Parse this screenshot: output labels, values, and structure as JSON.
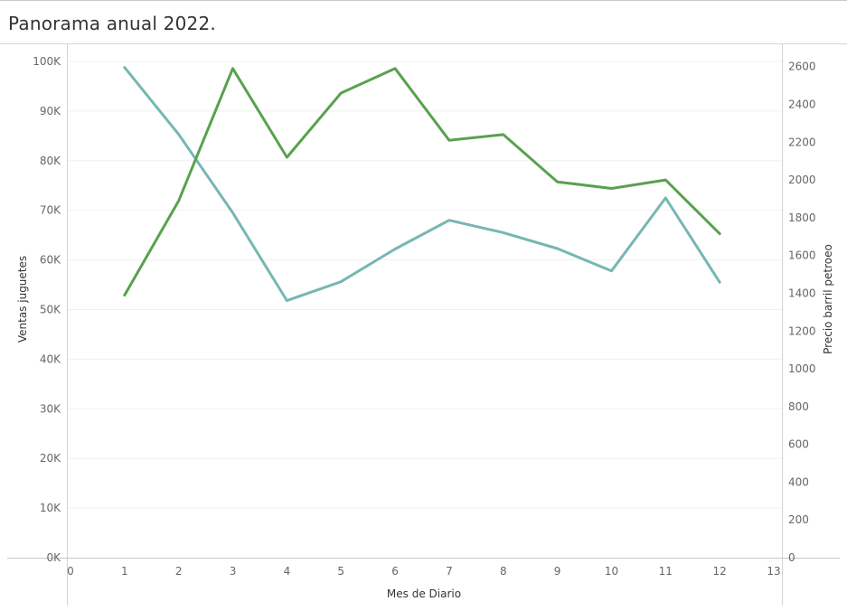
{
  "title": "Panorama anual 2022.",
  "chart_data": {
    "type": "line",
    "xlabel": "Mes de Diario",
    "x_ticks": [
      "0",
      "1",
      "2",
      "3",
      "4",
      "5",
      "6",
      "7",
      "8",
      "9",
      "10",
      "11",
      "12",
      "13"
    ],
    "xlim": [
      0,
      13
    ],
    "x": [
      1,
      2,
      3,
      4,
      5,
      6,
      7,
      8,
      9,
      10,
      11,
      12
    ],
    "left_axis": {
      "label": "Ventas juguetes",
      "ylim": [
        0,
        102000
      ],
      "ticks": [
        "0K",
        "10K",
        "20K",
        "30K",
        "40K",
        "50K",
        "60K",
        "70K",
        "80K",
        "90K",
        "100K"
      ]
    },
    "right_axis": {
      "label": "Precio barril petroeo",
      "ylim": [
        0,
        2680
      ],
      "ticks": [
        "0",
        "200",
        "400",
        "600",
        "800",
        "1000",
        "1200",
        "1400",
        "1600",
        "1800",
        "2000",
        "2200",
        "2400",
        "2600"
      ]
    },
    "series": [
      {
        "axis": "left",
        "color": "#76b7b2",
        "values": [
          98800,
          85300,
          69500,
          51800,
          55600,
          62200,
          68000,
          65500,
          62300,
          57800,
          72500,
          55500
        ]
      },
      {
        "axis": "right",
        "color": "#59a14f",
        "values": [
          1390,
          1890,
          2590,
          2120,
          2460,
          2590,
          2210,
          2240,
          1990,
          1955,
          2000,
          1715
        ]
      }
    ],
    "grid": true
  }
}
